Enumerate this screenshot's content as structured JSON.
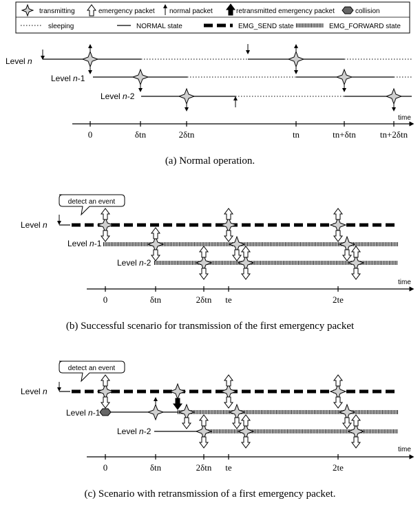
{
  "legend": {
    "transmitting": "transmitting",
    "emergency_packet": "emergency packet",
    "normal_packet": "normal packet",
    "retransmitted": "retransmitted emergency packet",
    "collision": "collision",
    "sleeping": "sleeping",
    "normal_state": "NORMAL state",
    "emg_send": "EMG_SEND state",
    "emg_forward": "EMG_FORWARD state"
  },
  "levels": [
    "Level n",
    "Level n-1",
    "Level n-2"
  ],
  "level_base": "Level ",
  "level_var": "n",
  "level_suffix": [
    "",
    "-1",
    "-2"
  ],
  "axis_label": "time",
  "detect_label": "detect an event",
  "ticks_a": [
    "0",
    "δtn",
    "2δtn",
    "tn",
    "tn+δtn",
    "tn+2δtn"
  ],
  "ticks_bc": [
    "0",
    "δtn",
    "2δtn",
    "te",
    "2te"
  ],
  "captions": {
    "a": "(a) Normal operation.",
    "b": "(b) Successful scenario for transmission of the first emergency packet",
    "c": "(c) Scenario with retransmission of a first emergency packet."
  }
}
